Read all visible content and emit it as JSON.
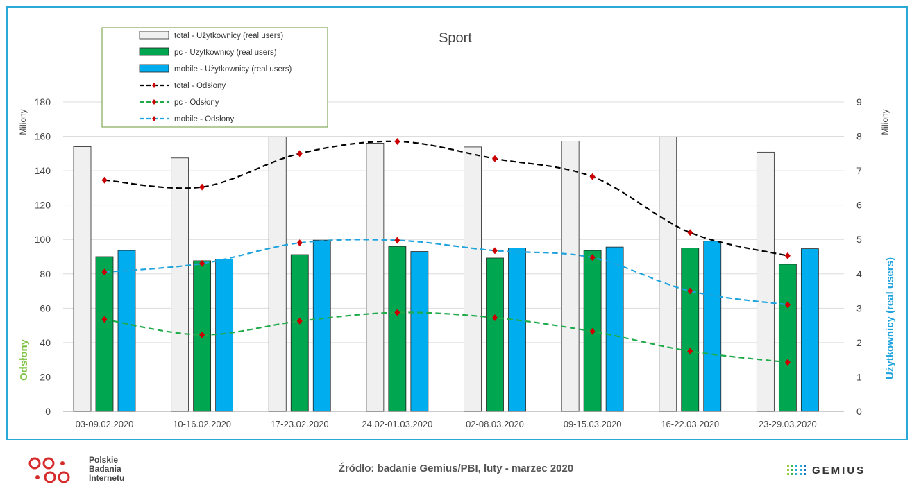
{
  "chart_data": {
    "type": "bar",
    "title": "Sport",
    "categories": [
      "03-09.02.2020",
      "10-16.02.2020",
      "17-23.02.2020",
      "24.02-01.03.2020",
      "02-08.03.2020",
      "09-15.03.2020",
      "16-22.03.2020",
      "23-29.03.2020"
    ],
    "left_axis": {
      "unit_label": "Miliony",
      "title": "Odsłony",
      "title_color": "#7dc242",
      "ylim": [
        0,
        180
      ],
      "ticks": [
        0,
        20,
        40,
        60,
        80,
        100,
        120,
        140,
        160,
        180
      ]
    },
    "right_axis": {
      "unit_label": "Miliony",
      "title": "Użytkownicy (real users)",
      "title_color": "#1fa3dd",
      "ylim": [
        0,
        9
      ],
      "ticks": [
        0,
        1,
        2,
        3,
        4,
        5,
        6,
        7,
        8,
        9
      ]
    },
    "bar_series": [
      {
        "name": "total - Użytkownicy (real users)",
        "color": "#f0f0f0",
        "values": [
          7.7,
          7.37,
          7.98,
          7.8,
          7.69,
          7.86,
          7.98,
          7.54
        ]
      },
      {
        "name": "pc - Użytkownicy (real users)",
        "color": "#00a650",
        "values": [
          4.5,
          4.38,
          4.56,
          4.8,
          4.46,
          4.68,
          4.75,
          4.28
        ]
      },
      {
        "name": "mobile - Użytkownicy (real users)",
        "color": "#00aeef",
        "values": [
          4.68,
          4.43,
          4.98,
          4.65,
          4.75,
          4.78,
          4.95,
          4.73
        ]
      }
    ],
    "line_series": [
      {
        "name": "total - Odsłony",
        "color": "#000000",
        "values": [
          134.5,
          130.5,
          150,
          157,
          147,
          136.5,
          104,
          90.5
        ]
      },
      {
        "name": "pc - Odsłony",
        "color": "#1fab4a",
        "values": [
          53.5,
          44.5,
          52.5,
          57.5,
          54.5,
          46.5,
          35,
          28.5
        ]
      },
      {
        "name": "mobile - Odsłony",
        "color": "#1fa3dd",
        "values": [
          81,
          86,
          98,
          99.5,
          93.5,
          89.5,
          70,
          62
        ]
      }
    ],
    "marker_color": "#cc0000",
    "grid": true,
    "legend_position": "top-left"
  },
  "footer": {
    "source": "Źródło: badanie Gemius/PBI, luty - marzec 2020",
    "pbi_lines": [
      "Polskie",
      "Badania",
      "Internetu"
    ],
    "gemius": "GEMIUS"
  }
}
